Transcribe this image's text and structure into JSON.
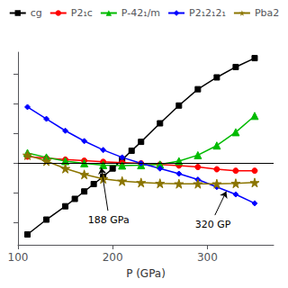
{
  "chart_data": {
    "type": "line",
    "xlabel": "P (GPa)",
    "xlim": [
      100,
      370
    ],
    "ylim": [
      -5.5,
      7.5
    ],
    "xticks": [
      100,
      200,
      300
    ],
    "yticks": [
      -4,
      -2,
      0,
      2,
      4,
      6
    ],
    "tick_labels": "x",
    "grid": false,
    "legend": "top",
    "hline": 0,
    "annotations": [
      {
        "text": "188 GPa",
        "xy": [
          188,
          -0.3
        ],
        "xytext": [
          195,
          -3.2
        ]
      },
      {
        "text": "320 GP",
        "xy": [
          320,
          -1.9
        ],
        "xytext": [
          308,
          -3.5
        ]
      }
    ],
    "series": [
      {
        "name": "cg",
        "color": "#000000",
        "marker": "square",
        "x": [
          110,
          130,
          150,
          160,
          170,
          180,
          190,
          200,
          210,
          220,
          230,
          250,
          270,
          290,
          310,
          330,
          350
        ],
        "values": [
          -4.8,
          -3.8,
          -2.9,
          -2.4,
          -1.9,
          -1.4,
          -0.9,
          -0.35,
          0.25,
          0.85,
          1.45,
          2.7,
          3.9,
          5.0,
          5.8,
          6.5,
          7.1
        ]
      },
      {
        "name": "P2₁c",
        "color": "#ff0000",
        "marker": "circle",
        "x": [
          110,
          130,
          150,
          170,
          190,
          210,
          230,
          250,
          270,
          290,
          310,
          330,
          350
        ],
        "values": [
          0.45,
          0.35,
          0.25,
          0.18,
          0.1,
          0.05,
          0.0,
          -0.08,
          -0.15,
          -0.25,
          -0.4,
          -0.5,
          -0.5
        ]
      },
      {
        "name": "P-42₁/m",
        "color": "#00bb00",
        "marker": "triangle",
        "x": [
          110,
          130,
          150,
          170,
          190,
          210,
          230,
          250,
          270,
          290,
          310,
          330,
          350
        ],
        "values": [
          0.7,
          0.4,
          0.15,
          0.0,
          -0.12,
          -0.15,
          -0.13,
          -0.08,
          0.15,
          0.55,
          1.2,
          2.1,
          3.2
        ]
      },
      {
        "name": "P2₁2₁2₁",
        "color": "#0000ff",
        "marker": "diamond",
        "x": [
          110,
          130,
          150,
          170,
          190,
          210,
          230,
          250,
          270,
          290,
          310,
          330,
          350
        ],
        "values": [
          3.8,
          3.0,
          2.2,
          1.5,
          0.9,
          0.4,
          0.0,
          -0.35,
          -0.7,
          -1.1,
          -1.6,
          -2.1,
          -2.7
        ]
      },
      {
        "name": "Pba2",
        "color": "#8B7500",
        "marker": "star",
        "x": [
          110,
          130,
          150,
          170,
          190,
          210,
          230,
          250,
          270,
          290,
          310,
          330,
          350
        ],
        "values": [
          0.55,
          0.15,
          -0.35,
          -0.75,
          -1.05,
          -1.2,
          -1.3,
          -1.35,
          -1.38,
          -1.38,
          -1.38,
          -1.35,
          -1.3
        ]
      }
    ]
  }
}
